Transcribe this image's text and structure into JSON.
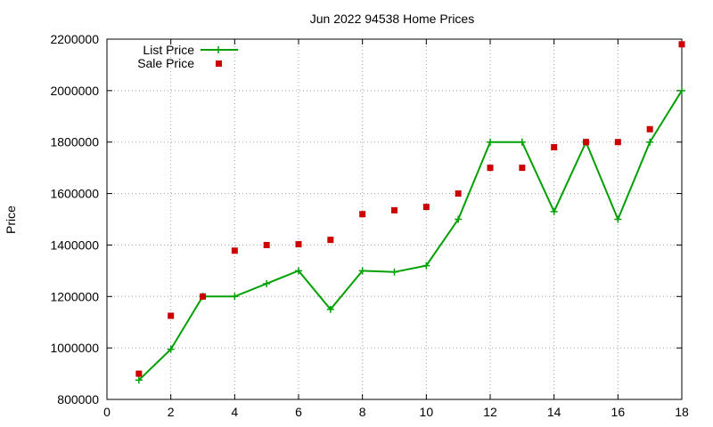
{
  "chart_data": {
    "type": "line",
    "title": "Jun 2022 94538 Home Prices",
    "xlabel": "",
    "ylabel": "Price",
    "xlim": [
      0,
      18
    ],
    "ylim": [
      800000,
      2200000
    ],
    "xticks": [
      0,
      2,
      4,
      6,
      8,
      10,
      12,
      14,
      16,
      18
    ],
    "yticks": [
      800000,
      1000000,
      1200000,
      1400000,
      1600000,
      1800000,
      2000000,
      2200000
    ],
    "grid": true,
    "legend_position": "top-left",
    "series": [
      {
        "name": "List Price",
        "style": "line-with-plus-markers",
        "color": "#00a000",
        "x": [
          1,
          2,
          3,
          4,
          5,
          6,
          7,
          8,
          9,
          10,
          11,
          12,
          13,
          14,
          15,
          16,
          17,
          18
        ],
        "values": [
          875000,
          995000,
          1200000,
          1200000,
          1250000,
          1300000,
          1150000,
          1300000,
          1295000,
          1320000,
          1500000,
          1800000,
          1800000,
          1530000,
          1800000,
          1500000,
          1800000,
          2000000
        ]
      },
      {
        "name": "Sale Price",
        "style": "square-markers",
        "color": "#cc0000",
        "x": [
          1,
          2,
          3,
          4,
          5,
          6,
          7,
          8,
          9,
          10,
          11,
          12,
          13,
          14,
          15,
          16,
          17,
          18
        ],
        "values": [
          900000,
          1125000,
          1200000,
          1378000,
          1400000,
          1403000,
          1420000,
          1520000,
          1535000,
          1548000,
          1600000,
          1700000,
          1700000,
          1780000,
          1800000,
          1800000,
          1850000,
          2180000
        ]
      }
    ]
  }
}
